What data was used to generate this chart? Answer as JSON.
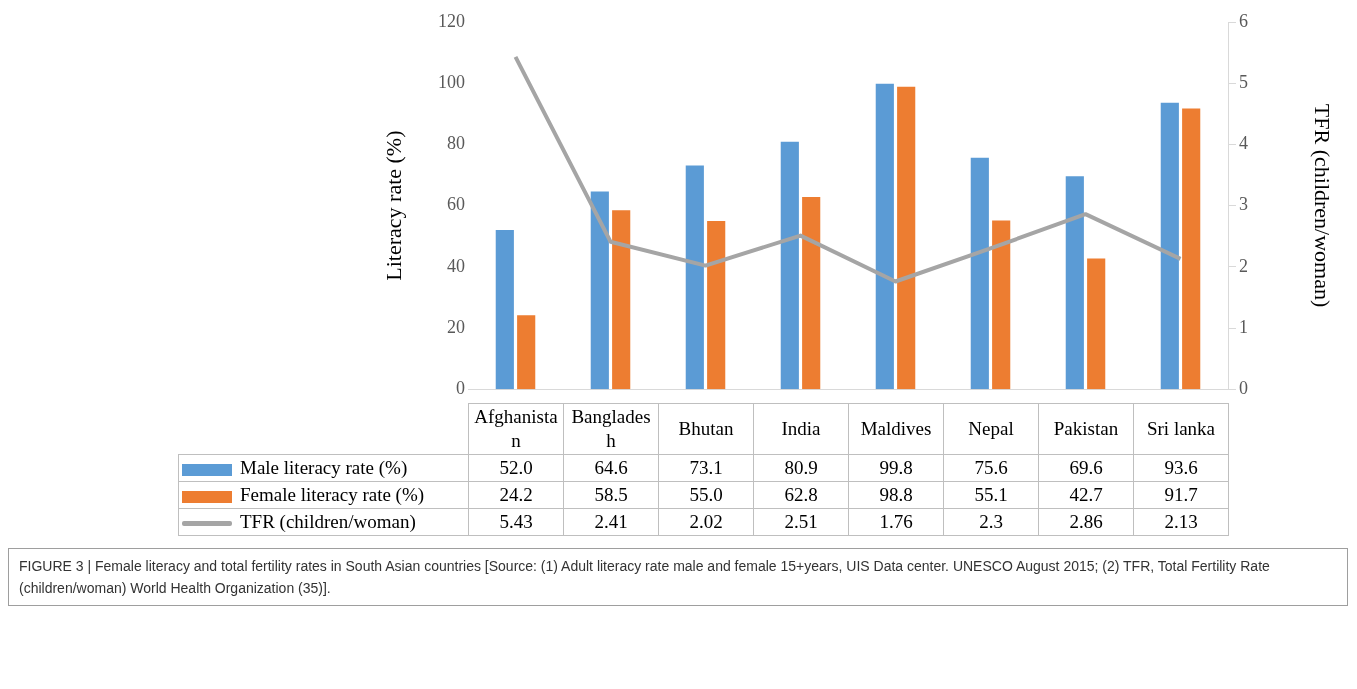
{
  "chart_data": {
    "type": "bar",
    "categories": [
      "Afghanistan",
      "Bangladesh",
      "Bhutan",
      "India",
      "Maldives",
      "Nepal",
      "Pakistan",
      "Sri lanka"
    ],
    "series": [
      {
        "name": "Male literacy rate (%)",
        "color": "#5b9bd5",
        "values": [
          52.0,
          64.6,
          73.1,
          80.9,
          99.8,
          75.6,
          69.6,
          93.6
        ],
        "value_labels": [
          "52.0",
          "64.6",
          "73.1",
          "80.9",
          "99.8",
          "75.6",
          "69.6",
          "93.6"
        ]
      },
      {
        "name": "Female literacy rate (%)",
        "color": "#ed7d31",
        "values": [
          24.2,
          58.5,
          55.0,
          62.8,
          98.8,
          55.1,
          42.7,
          91.7
        ],
        "value_labels": [
          "24.2",
          "58.5",
          "55.0",
          "62.8",
          "98.8",
          "55.1",
          "42.7",
          "91.7"
        ]
      },
      {
        "name": "TFR (children/woman)",
        "type": "line",
        "axis": "y2",
        "color": "#a5a5a5",
        "values": [
          5.43,
          2.41,
          2.02,
          2.51,
          1.76,
          2.3,
          2.86,
          2.13
        ],
        "value_labels": [
          "5.43",
          "2.41",
          "2.02",
          "2.51",
          "1.76",
          "2.3",
          "2.86",
          "2.13"
        ]
      }
    ],
    "ylabel": "Literacy rate (%)",
    "y2label": "TFR (children/woman)",
    "ylim": [
      0,
      120
    ],
    "yticks": [
      0,
      20,
      40,
      60,
      80,
      100,
      120
    ],
    "y2lim": [
      0,
      6
    ],
    "y2ticks": [
      0,
      1,
      2,
      3,
      4,
      5,
      6
    ],
    "grid": false,
    "legend": "bottom",
    "marker": "none",
    "annotations": [
      "FIGURE 3 | Female literacy and total fertility rates in South Asian countries [Source: (1) Adult literacy rate male and female 15+years, UIS Data center. UNESCO August 2015; (2) TFR, Total Fertility Rate (children/woman) World Health Organization (35)]."
    ]
  }
}
